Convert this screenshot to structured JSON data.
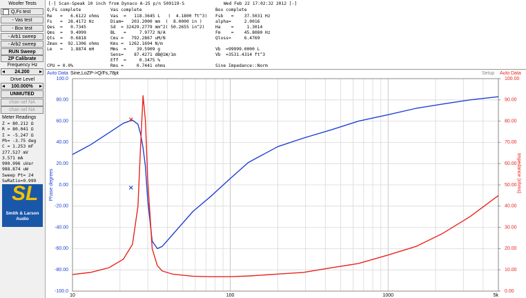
{
  "sidebar": {
    "title": "Woofer Tests",
    "buttons": [
      "Q,Fs test",
      "- Vas test",
      "- Box test",
      "- Arb1 sweep",
      "- Arb2 sweep",
      "RUN Sweep",
      "ZP Calibrate"
    ],
    "frequency_label": "Frequency Hz",
    "frequency": "24.200",
    "drive_label": "Drive Level",
    "drive": "100.000%",
    "mute": "UNMUTED",
    "channels": [
      "chan sel NA",
      "chan sel NA"
    ],
    "meter_title": "Meter Readings",
    "meter": [
      "Z = 80.212 Ω",
      "R = 80.041 Ω",
      "I = -5.247 Ω",
      "Ph= -3.75 deg",
      "C = 1.253 mF",
      "277.527 mV",
      "3.571 mA",
      "990.996 uVar",
      "988.874 uW",
      "Sweep Pt= 24",
      "SwRatio=0.999"
    ],
    "logo_mark": "SL",
    "logo": [
      "Smith & Larson",
      "Audio"
    ]
  },
  "header": {
    "title": "[-] Scan-Speak 10 inch from Dynaco A-25 p/n 509119-S",
    "date": "Wed Feb 22 17:02:32 2012 [-]",
    "columns": [
      {
        "heading": "Q,Fs complete",
        "rows": [
          "Re   =   6.6122 ohms",
          "Fs   =  28.4172 Hz",
          "Qes  =   0.7345",
          "Qms  =   9.4999",
          "Qts  =   0.6818",
          "Zmax =  92.1306 ohms",
          "Le   =   1.8874 mH",
          null,
          null,
          "CPU = 0.0%"
        ]
      },
      {
        "heading": "Vas complete",
        "rows": [
          "Vas  =   118.3645 L   (  4.1800 ft^3)",
          "Diam=   203.2000 mm  (  8.0000 in )",
          "Sd  = 32429.2779 mm^2( 50.2655 in^2)",
          "BL   =     7.9772 N/A",
          "Cms =   792.2867 uM/N",
          "Kms =  1262.1694 N/m",
          "Mms  =    39.5909 g",
          "Sens=    87.4271 dB@1W/1m",
          "Eff  =     0.3475 %",
          "Rms =     0.7441 ohms"
        ]
      },
      {
        "heading": "Box complete",
        "rows": [
          "Fsb   =    37.5031 Hz",
          "alpha=     2.0016",
          "Ha    =     1.3014",
          "Fm    =    45.8080 Hz",
          "Qloss=     6.4769",
          null,
          "Vb  =99999.0000 L",
          "Vb  =3531.4314 ft^3",
          null,
          "Sine Impedance::Norm"
        ]
      }
    ]
  },
  "plot_toolbar": {
    "left": [
      "Auto",
      "Data"
    ],
    "title": "Sine,LoZP->Q/Fs,78pt",
    "setup": "Setup",
    "right": [
      "Auto",
      "Data"
    ]
  },
  "chart_data": {
    "type": "line",
    "ylabel": "Phase degrees",
    "y2label": "Impedance (ohms)",
    "xscale": "log",
    "xlim": [
      10,
      5000
    ],
    "xticks": [
      10,
      100,
      1000,
      {
        "value": 5000,
        "label": "5k"
      }
    ],
    "xminorticks": [
      20,
      30,
      40,
      50,
      60,
      70,
      80,
      90,
      200,
      300,
      400,
      500,
      600,
      700,
      800,
      900,
      2000,
      3000,
      4000
    ],
    "ylim": [
      -100,
      100
    ],
    "yticks": [
      {
        "value": -100,
        "label": "-100.0"
      },
      {
        "value": -80,
        "label": "-80.00"
      },
      {
        "value": -60,
        "label": "-60.00"
      },
      {
        "value": -40,
        "label": "-40.00"
      },
      {
        "value": -20,
        "label": "-20.00"
      },
      {
        "value": 0,
        "label": "0.00"
      },
      {
        "value": 20,
        "label": "20.00"
      },
      {
        "value": 40,
        "label": "40.00"
      },
      {
        "value": 60,
        "label": "60.00"
      },
      {
        "value": 80,
        "label": "80.00"
      },
      {
        "value": 100,
        "label": "100.0"
      }
    ],
    "y2lim": [
      0,
      100
    ],
    "y2ticks": [
      {
        "value": 0,
        "label": "0.00"
      },
      {
        "value": 10,
        "label": "10.00"
      },
      {
        "value": 20,
        "label": "20.00"
      },
      {
        "value": 30,
        "label": "30.00"
      },
      {
        "value": 40,
        "label": "40.00"
      },
      {
        "value": 50,
        "label": "50.00"
      },
      {
        "value": 60,
        "label": "60.00"
      },
      {
        "value": 70,
        "label": "70.00"
      },
      {
        "value": 80,
        "label": "80.00"
      },
      {
        "value": 90,
        "label": "90.00"
      },
      {
        "value": 100,
        "label": "100.00"
      }
    ],
    "grid": true,
    "x": [
      10,
      13,
      17,
      21,
      24,
      26,
      27,
      28,
      29,
      30,
      32,
      34.5,
      37,
      43,
      58,
      75,
      100,
      130,
      200,
      290,
      440,
      650,
      1000,
      1500,
      2200,
      3300,
      5000
    ],
    "series": [
      {
        "name": "Phase",
        "color": "#1c3fd4",
        "axis": "y",
        "values": [
          28.6,
          37.7,
          49,
          58,
          61,
          57,
          48,
          35,
          17,
          -15,
          -53,
          -60,
          -58,
          -47,
          -25,
          -11,
          6,
          21,
          36,
          44,
          52,
          60,
          66,
          72,
          76,
          80,
          83
        ]
      },
      {
        "name": "Impedance",
        "color": "#e8231a",
        "axis": "y2",
        "values": [
          7.8,
          8.8,
          11,
          15,
          22,
          40,
          68,
          92,
          80,
          52,
          20,
          12,
          9.5,
          8,
          7,
          6.8,
          6.8,
          7.1,
          8,
          8.8,
          11,
          13,
          17,
          21,
          27,
          35,
          45
        ]
      }
    ],
    "markers": [
      {
        "x": 23.5,
        "y": 80.8,
        "axis": "y2",
        "color": "#e8231a"
      },
      {
        "x": 23.5,
        "y": -2.6,
        "axis": "y",
        "color": "#1c3fd4"
      }
    ]
  }
}
